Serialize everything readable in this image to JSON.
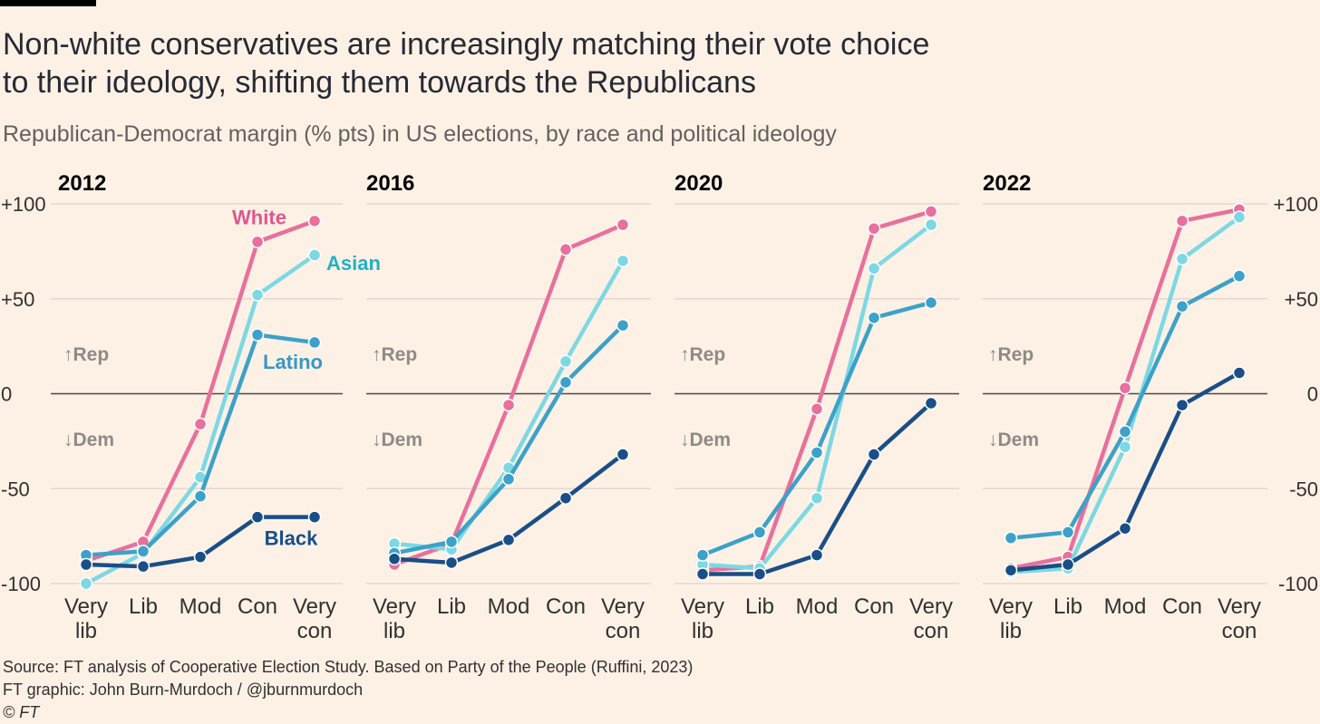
{
  "header": {
    "title_line1": "Non-white conservatives are increasingly matching their vote choice",
    "title_line2": "to their ideology, shifting them towards the Republicans",
    "subtitle": "Republican-Democrat margin (% pts) in US elections, by race and political ideology"
  },
  "footer": {
    "source": "Source: FT analysis of Cooperative Election Study. Based on Party of the People (Ruffini, 2023)",
    "graphic": "FT graphic: John Burn-Murdoch / @jburnmurdoch",
    "credit": "© FT"
  },
  "chart_data": {
    "type": "line",
    "ylim": [
      -100,
      100
    ],
    "yticks": [
      "+100",
      "+50",
      "0",
      "-50",
      "-100"
    ],
    "yticks_values": [
      100,
      50,
      0,
      -50,
      -100
    ],
    "direction_labels": {
      "up": "↑Rep",
      "down": "↓Dem"
    },
    "categories": [
      [
        "Very",
        "lib"
      ],
      [
        "Lib"
      ],
      [
        "Mod"
      ],
      [
        "Con"
      ],
      [
        "Very",
        "con"
      ]
    ],
    "series_styles": [
      {
        "name": "White",
        "color": "#e8709b"
      },
      {
        "name": "Asian",
        "color": "#7dd8e2"
      },
      {
        "name": "Latino",
        "color": "#3da1c9"
      },
      {
        "name": "Black",
        "color": "#1a4e86"
      }
    ],
    "label_colors": {
      "White": "#e0568c",
      "Asian": "#22b2c4",
      "Latino": "#3898c4",
      "Black": "#154e8a"
    },
    "panels": [
      {
        "title": "2012",
        "series": [
          {
            "name": "White",
            "values": [
              -88,
              -78,
              -16,
              80,
              91
            ]
          },
          {
            "name": "Asian",
            "values": [
              -100,
              -84,
              -44,
              52,
              73
            ]
          },
          {
            "name": "Latino",
            "values": [
              -85,
              -83,
              -54,
              31,
              27
            ]
          },
          {
            "name": "Black",
            "values": [
              -90,
              -91,
              -86,
              -65,
              -65
            ]
          }
        ]
      },
      {
        "title": "2016",
        "series": [
          {
            "name": "White",
            "values": [
              -90,
              -79,
              -6,
              76,
              89
            ]
          },
          {
            "name": "Asian",
            "values": [
              -79,
              -82,
              -39,
              17,
              70
            ]
          },
          {
            "name": "Latino",
            "values": [
              -84,
              -78,
              -45,
              6,
              36
            ]
          },
          {
            "name": "Black",
            "values": [
              -87,
              -89,
              -77,
              -55,
              -32
            ]
          }
        ]
      },
      {
        "title": "2020",
        "series": [
          {
            "name": "White",
            "values": [
              -93,
              -91,
              -8,
              87,
              96
            ]
          },
          {
            "name": "Asian",
            "values": [
              -90,
              -92,
              -55,
              66,
              89
            ]
          },
          {
            "name": "Latino",
            "values": [
              -85,
              -73,
              -31,
              40,
              48
            ]
          },
          {
            "name": "Black",
            "values": [
              -95,
              -95,
              -85,
              -32,
              -5
            ]
          }
        ]
      },
      {
        "title": "2022",
        "series": [
          {
            "name": "White",
            "values": [
              -92,
              -86,
              3,
              91,
              97
            ]
          },
          {
            "name": "Asian",
            "values": [
              -94,
              -92,
              -28,
              71,
              93
            ]
          },
          {
            "name": "Latino",
            "values": [
              -76,
              -73,
              -20,
              46,
              62
            ]
          },
          {
            "name": "Black",
            "values": [
              -93,
              -90,
              -71,
              -6,
              11
            ]
          }
        ]
      }
    ],
    "series_labels": [
      {
        "name": "White",
        "panel": 0
      },
      {
        "name": "Asian",
        "panel": 0
      },
      {
        "name": "Latino",
        "panel": 0
      },
      {
        "name": "Black",
        "panel": 0
      }
    ]
  }
}
